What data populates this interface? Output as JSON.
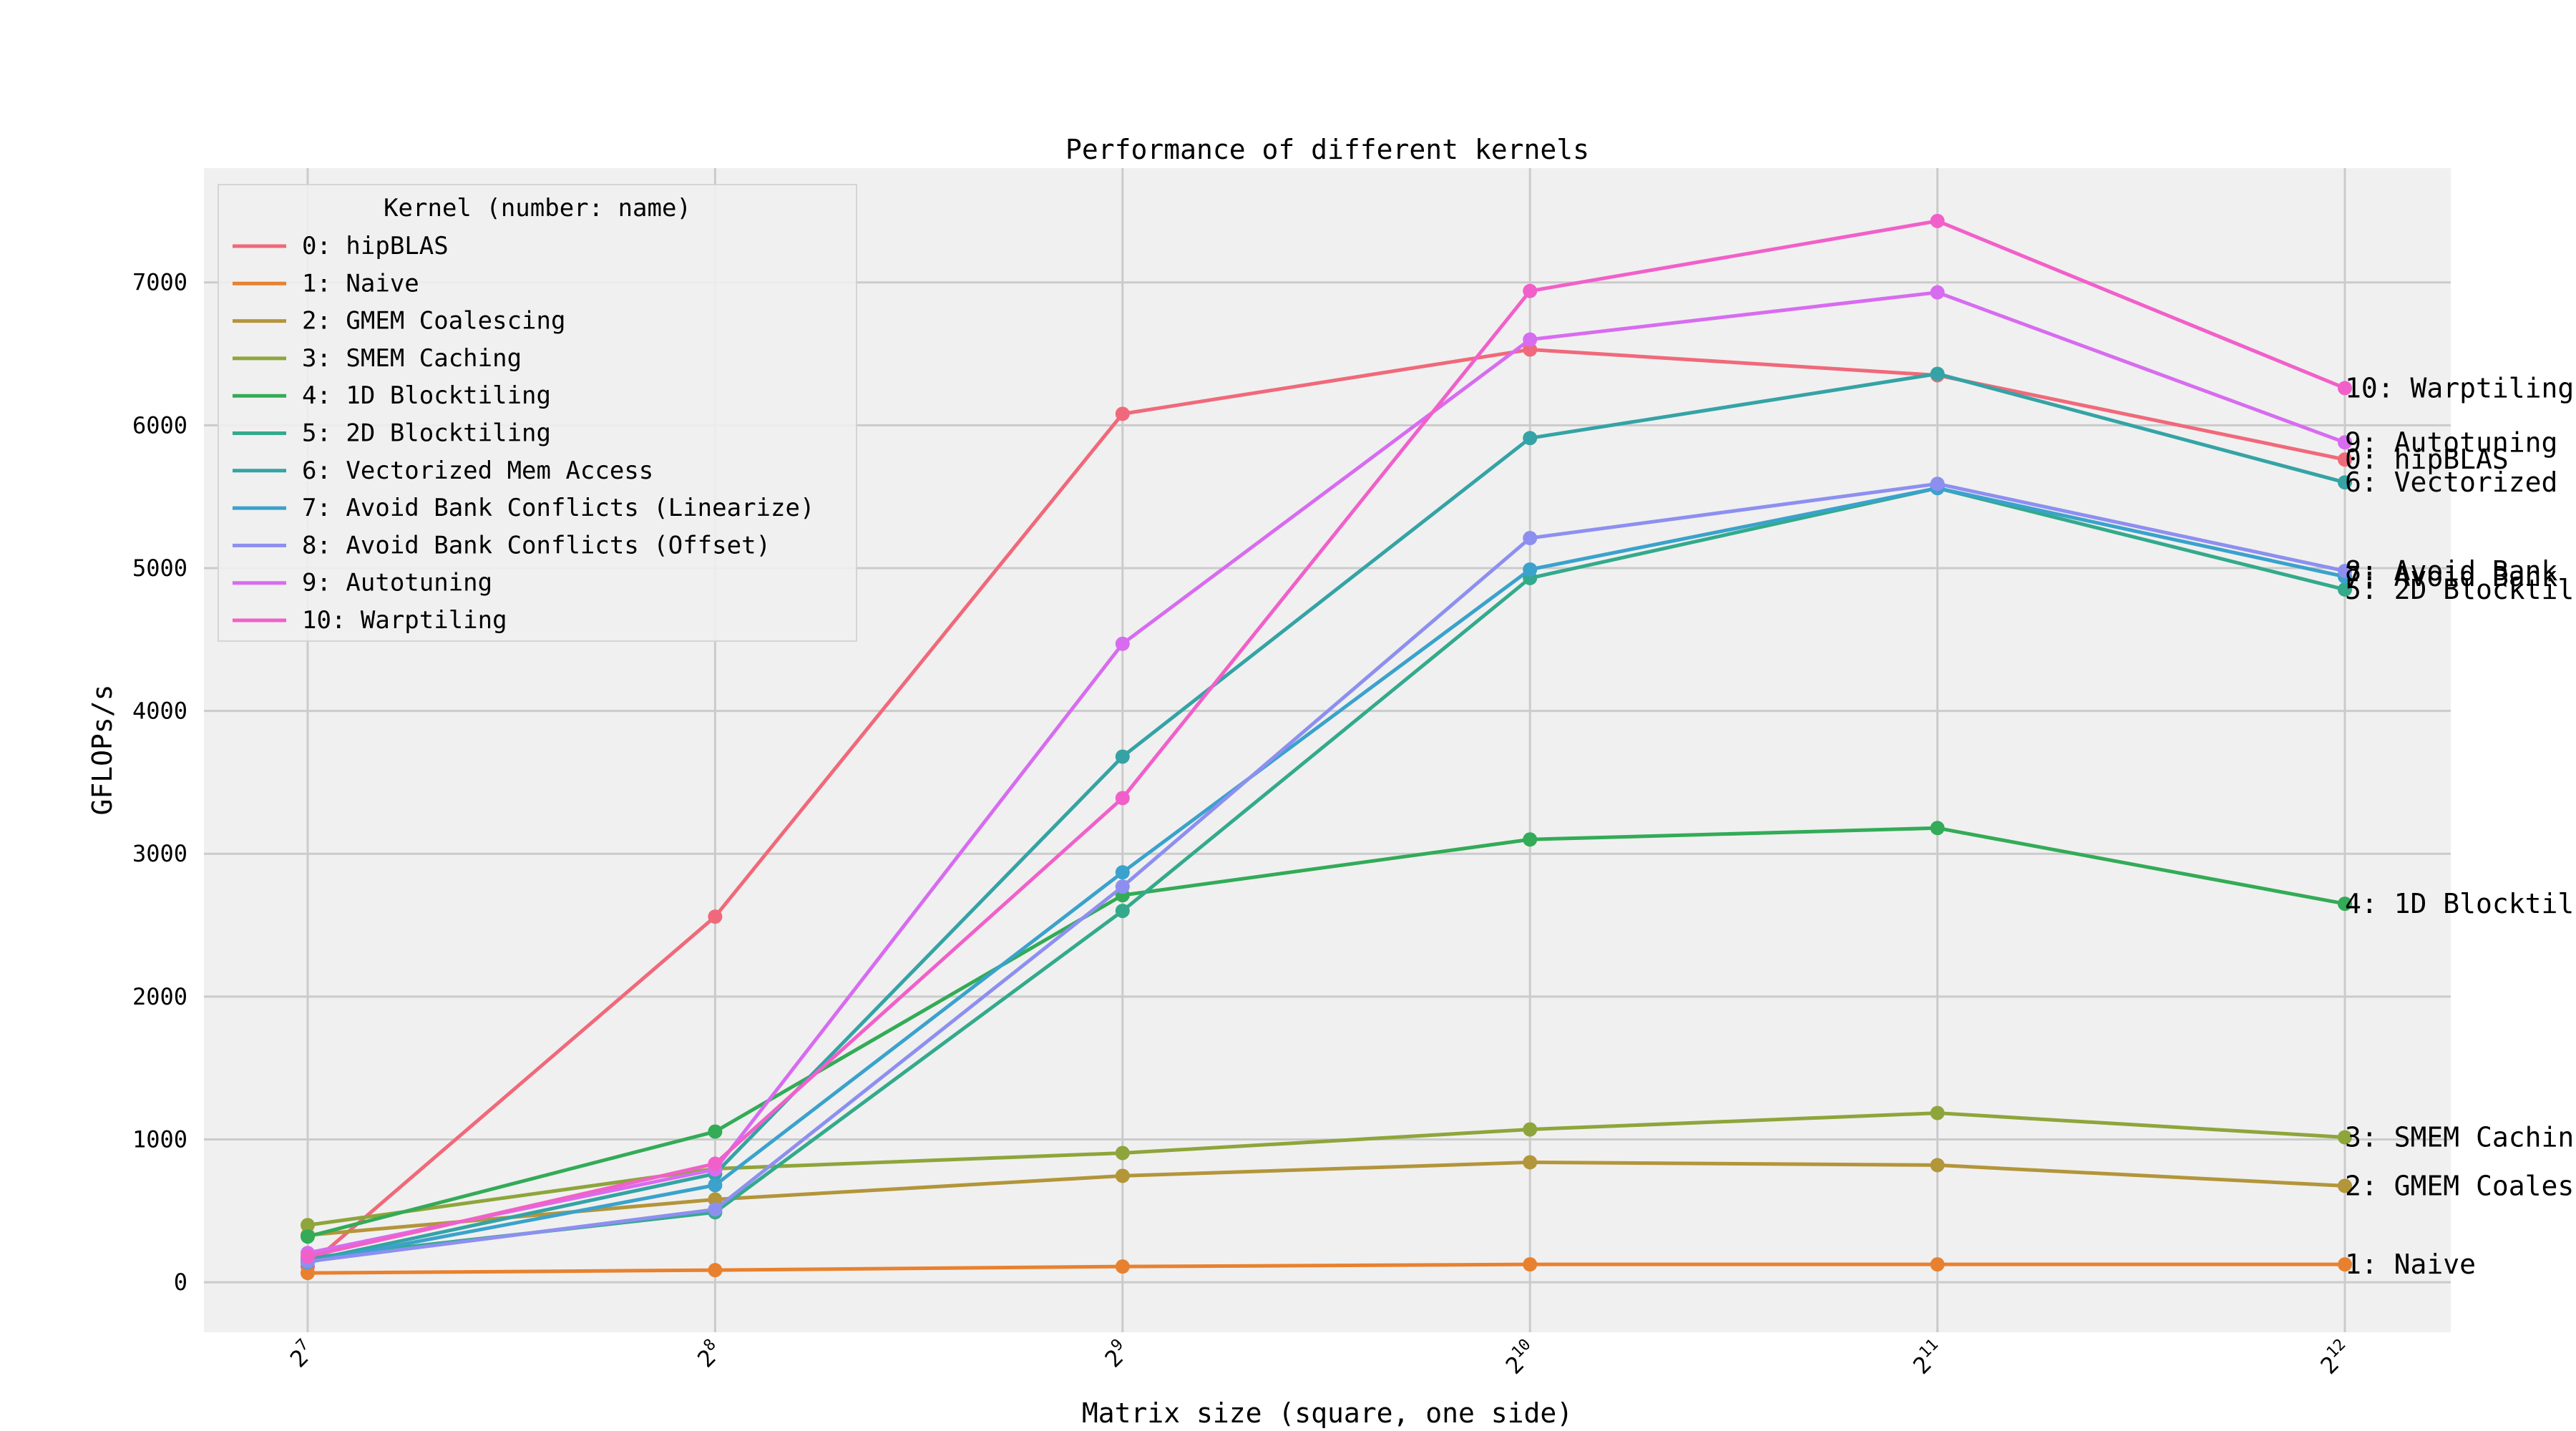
{
  "chart_data": {
    "type": "line",
    "title": "Performance of different kernels",
    "xlabel": "Matrix size (square, one side)",
    "ylabel": "GFLOPs/s",
    "x": [
      128,
      256,
      512,
      1024,
      2048,
      4096
    ],
    "x_tick_base": "2",
    "x_tick_exponents": [
      "7",
      "8",
      "9",
      "10",
      "11",
      "12"
    ],
    "x_scale": "log2",
    "ylim": [
      -350,
      7800
    ],
    "y_ticks": [
      0,
      1000,
      2000,
      3000,
      4000,
      5000,
      6000,
      7000
    ],
    "y_tick_labels": [
      "0",
      "1000",
      "2000",
      "3000",
      "4000",
      "5000",
      "6000",
      "7000"
    ],
    "grid": true,
    "legend": {
      "title": "Kernel (number: name)",
      "placement": "top-left"
    },
    "series": [
      {
        "name": "0: hipBLAS",
        "color": "#f0697a",
        "values": [
          110,
          2560,
          6080,
          6530,
          6350,
          5760
        ],
        "end_label": "0: hipBLAS"
      },
      {
        "name": "1: Naive",
        "color": "#e8812f",
        "values": [
          65,
          85,
          110,
          125,
          125,
          125
        ],
        "end_label": "1: Naive"
      },
      {
        "name": "2: GMEM Coalescing",
        "color": "#b3953a",
        "values": [
          330,
          580,
          745,
          840,
          820,
          675
        ],
        "end_label": "2: GMEM Coales"
      },
      {
        "name": "3: SMEM Caching",
        "color": "#8ea53b",
        "values": [
          400,
          795,
          905,
          1070,
          1185,
          1015
        ],
        "end_label": "3: SMEM Cachin"
      },
      {
        "name": "4: 1D Blocktiling",
        "color": "#33ab57",
        "values": [
          320,
          1055,
          2710,
          3100,
          3180,
          2650
        ],
        "end_label": "4: 1D Blocktil"
      },
      {
        "name": "5: 2D Blocktiling",
        "color": "#33aa8b",
        "values": [
          170,
          490,
          2600,
          4930,
          5560,
          4850
        ],
        "end_label": "5: 2D Blocktil"
      },
      {
        "name": "6: Vectorized Mem Access",
        "color": "#35a3a5",
        "values": [
          150,
          760,
          3680,
          5910,
          6360,
          5600
        ],
        "end_label": "6: Vectorized"
      },
      {
        "name": "7: Avoid Bank Conflicts (Linearize)",
        "color": "#3aa2cc",
        "values": [
          140,
          680,
          2870,
          4990,
          5560,
          4940
        ],
        "end_label": "7: Avoid Bank"
      },
      {
        "name": "8: Avoid Bank Conflicts (Offset)",
        "color": "#8d8ff0",
        "values": [
          145,
          510,
          2770,
          5210,
          5590,
          4980
        ],
        "end_label": "8: Avoid Bank"
      },
      {
        "name": "9: Autotuning",
        "color": "#d76cf0",
        "values": [
          205,
          790,
          4470,
          6600,
          6930,
          5880
        ],
        "end_label": "9: Autotuning"
      },
      {
        "name": "10: Warptiling",
        "color": "#f160c9",
        "values": [
          180,
          830,
          3390,
          6940,
          7430,
          6260
        ],
        "end_label": "10: Warptiling"
      }
    ]
  }
}
